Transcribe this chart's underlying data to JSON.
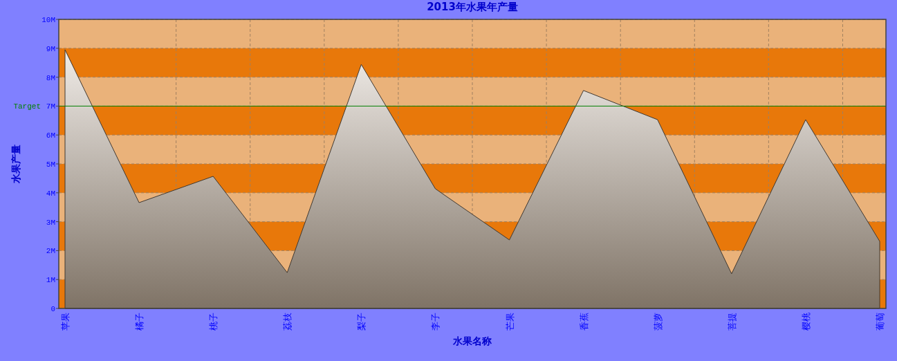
{
  "chart_data": {
    "type": "area",
    "title": "2013年水果年产量",
    "xlabel": "水果名称",
    "ylabel": "水果产量",
    "categories": [
      "苹果",
      "橘子",
      "桃子",
      "荔枝",
      "梨子",
      "李子",
      "芒果",
      "香蕉",
      "菠萝",
      "菩提",
      "樱桃",
      "葡萄"
    ],
    "series": [
      {
        "color": "#403830",
        "values": [
          8.95,
          3.66,
          4.57,
          1.24,
          8.44,
          4.14,
          2.37,
          7.54,
          6.53,
          1.2,
          6.53,
          2.32
        ]
      }
    ],
    "ylim": [
      0,
      10
    ],
    "yticks": [
      0,
      {
        "value": 1,
        "label": "1M"
      },
      {
        "value": 2,
        "label": "2M"
      },
      {
        "value": 3,
        "label": "3M"
      },
      {
        "value": 4,
        "label": "4M"
      },
      {
        "value": 5,
        "label": "5M"
      },
      {
        "value": 6,
        "label": "6M"
      },
      {
        "value": 7,
        "label": "7M"
      },
      {
        "value": 8,
        "label": "8M"
      },
      {
        "value": 9,
        "label": "9M"
      },
      {
        "value": 10,
        "label": "10M"
      }
    ],
    "bands": [
      {
        "axis": "y",
        "from": 0,
        "to": 1,
        "color": "#e8780a"
      },
      {
        "axis": "y",
        "from": 2,
        "to": 3,
        "color": "#e8780a"
      },
      {
        "axis": "y",
        "from": 4,
        "to": 5,
        "color": "#e8780a"
      },
      {
        "axis": "y",
        "from": 6,
        "to": 7,
        "color": "#e8780a"
      },
      {
        "axis": "y",
        "from": 8,
        "to": 9,
        "color": "#e8780a"
      }
    ],
    "ref_lines": [
      {
        "axis": "y",
        "value": 7,
        "label": "Target",
        "color": "#008000"
      }
    ],
    "grid": true
  }
}
